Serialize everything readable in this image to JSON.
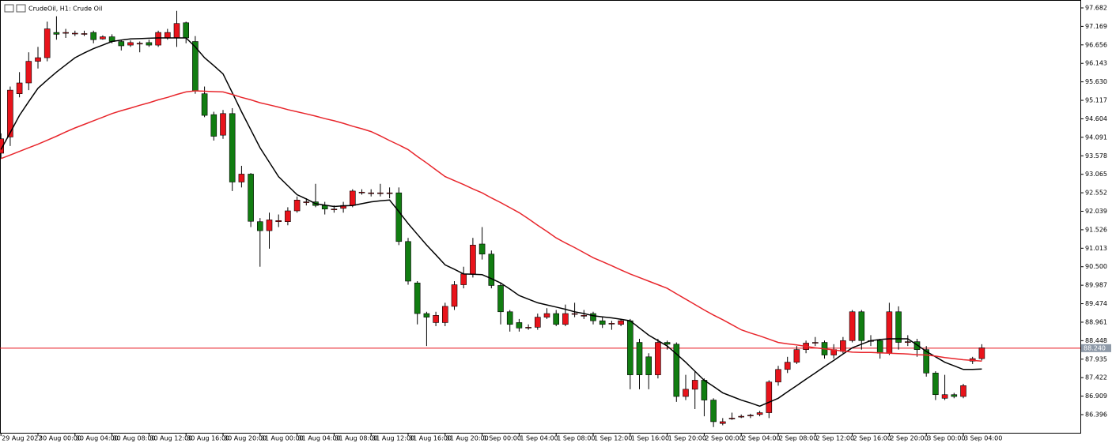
{
  "chart_data": {
    "type": "candlestick",
    "title": "CrudeOil, H1:  Crude Oil",
    "up_color": "#e8131b",
    "down_color": "#117d11",
    "categories": [
      "29 Aug 2022",
      null,
      null,
      null,
      "30 Aug 00:00",
      null,
      null,
      null,
      "30 Aug 04:00",
      null,
      null,
      null,
      "30 Aug 08:00",
      null,
      null,
      null,
      "30 Aug 12:00",
      null,
      null,
      null,
      "30 Aug 16:00",
      null,
      null,
      null,
      "30 Aug 20:00",
      null,
      null,
      null,
      "31 Aug 00:00",
      null,
      null,
      null,
      "31 Aug 04:00",
      null,
      null,
      null,
      "31 Aug 08:00",
      null,
      null,
      null,
      "31 Aug 12:00",
      null,
      null,
      null,
      "31 Aug 16:00",
      null,
      null,
      null,
      "31 Aug 20:00",
      null,
      null,
      null,
      "1 Sep 00:00",
      null,
      null,
      null,
      "1 Sep 04:00",
      null,
      null,
      null,
      "1 Sep 08:00",
      null,
      null,
      null,
      "1 Sep 12:00",
      null,
      null,
      null,
      "1 Sep 16:00",
      null,
      null,
      null,
      "1 Sep 20:00",
      null,
      null,
      null,
      "2 Sep 00:00",
      null,
      null,
      null,
      "2 Sep 04:00",
      null,
      null,
      null,
      "2 Sep 08:00",
      null,
      null,
      null,
      "2 Sep 12:00",
      null,
      null,
      null,
      "2 Sep 16:00",
      null,
      null,
      null,
      "2 Sep 20:00",
      null,
      null,
      null,
      "3 Sep 00:00",
      null,
      null,
      null,
      "3 Sep 04:00",
      null,
      null
    ],
    "open": [
      93.65,
      94.1,
      95.3,
      95.6,
      96.2,
      96.3,
      97.0,
      96.98,
      96.98,
      96.97,
      97.0,
      96.82,
      96.88,
      96.75,
      96.65,
      96.7,
      96.72,
      96.65,
      96.85,
      96.85,
      97.27,
      96.75,
      95.3,
      94.72,
      94.15,
      94.75,
      92.85,
      93.07,
      91.75,
      91.5,
      91.75,
      91.75,
      92.05,
      92.3,
      92.3,
      92.2,
      92.1,
      92.12,
      92.2,
      92.57,
      92.55,
      92.55,
      92.55,
      92.55,
      91.2,
      90.05,
      89.2,
      88.95,
      88.95,
      89.4,
      90.0,
      90.3,
      91.13,
      90.85,
      89.98,
      89.25,
      88.95,
      88.82,
      88.82,
      89.1,
      89.2,
      88.9,
      89.2,
      89.15,
      89.2,
      89.0,
      88.93,
      88.9,
      89.0,
      88.4,
      88.0,
      87.5,
      88.4,
      88.35,
      86.9,
      87.1,
      87.35,
      86.8,
      86.15,
      86.3,
      86.35,
      86.38,
      86.4,
      86.45,
      87.3,
      87.65,
      87.85,
      88.2,
      88.4,
      88.4,
      88.05,
      88.15,
      88.45,
      89.25,
      88.45,
      88.45,
      88.1,
      89.25,
      88.42,
      88.42,
      88.2,
      87.55,
      86.85,
      86.95,
      86.9,
      87.88,
      87.95
    ],
    "close": [
      94.05,
      95.4,
      95.6,
      96.2,
      96.3,
      97.1,
      96.95,
      97.0,
      96.98,
      96.97,
      96.8,
      96.88,
      96.75,
      96.63,
      96.72,
      96.7,
      96.65,
      97.0,
      97.0,
      97.25,
      96.85,
      95.38,
      94.7,
      94.12,
      94.75,
      92.85,
      93.07,
      91.76,
      91.5,
      91.8,
      91.78,
      92.05,
      92.35,
      92.3,
      92.2,
      92.1,
      92.1,
      92.2,
      92.6,
      92.57,
      92.55,
      92.55,
      92.55,
      91.2,
      90.1,
      89.2,
      89.1,
      89.15,
      89.4,
      90.0,
      90.3,
      91.1,
      90.85,
      89.98,
      89.25,
      88.9,
      88.8,
      88.82,
      89.1,
      89.2,
      88.9,
      89.2,
      89.2,
      89.15,
      89.0,
      88.9,
      88.93,
      89.0,
      87.5,
      87.5,
      87.5,
      88.4,
      88.35,
      86.9,
      87.1,
      87.35,
      86.8,
      86.2,
      86.2,
      86.3,
      86.35,
      86.38,
      86.45,
      87.3,
      87.65,
      87.85,
      88.2,
      88.38,
      88.4,
      88.05,
      88.2,
      88.45,
      89.25,
      88.45,
      88.45,
      88.1,
      89.25,
      88.4,
      88.42,
      88.2,
      87.55,
      86.95,
      86.95,
      86.9,
      87.2,
      87.95,
      88.25
    ],
    "high": [
      94.2,
      95.5,
      95.9,
      96.45,
      96.6,
      97.3,
      97.45,
      97.1,
      97.05,
      97.05,
      97.05,
      96.92,
      96.95,
      96.8,
      96.78,
      96.75,
      96.8,
      97.05,
      97.1,
      97.6,
      97.3,
      96.9,
      95.5,
      94.8,
      94.85,
      94.9,
      93.3,
      93.1,
      91.85,
      92.0,
      91.95,
      92.15,
      92.45,
      92.4,
      92.8,
      92.3,
      92.2,
      92.3,
      92.65,
      92.65,
      92.65,
      92.8,
      92.7,
      92.7,
      91.3,
      90.1,
      89.25,
      89.25,
      89.5,
      90.1,
      90.5,
      91.3,
      91.6,
      90.95,
      90.05,
      89.3,
      89.05,
      88.9,
      89.2,
      89.35,
      89.3,
      89.45,
      89.5,
      89.3,
      89.25,
      89.1,
      89.0,
      89.05,
      89.05,
      88.5,
      88.1,
      88.5,
      88.45,
      88.4,
      87.5,
      87.6,
      87.4,
      86.85,
      86.3,
      86.45,
      86.4,
      86.42,
      86.5,
      87.35,
      87.75,
      88.0,
      88.3,
      88.45,
      88.55,
      88.45,
      88.35,
      88.55,
      89.3,
      89.3,
      88.6,
      88.5,
      89.5,
      89.4,
      88.6,
      88.5,
      88.3,
      87.6,
      87.5,
      87.0,
      87.25,
      88.0,
      88.35
    ],
    "low": [
      93.5,
      93.85,
      95.2,
      95.4,
      96.0,
      96.2,
      96.8,
      96.85,
      96.9,
      96.9,
      96.7,
      96.8,
      96.7,
      96.5,
      96.6,
      96.45,
      96.6,
      96.6,
      96.8,
      96.6,
      96.7,
      95.3,
      94.65,
      94.0,
      94.05,
      92.6,
      92.7,
      91.6,
      90.5,
      91.0,
      91.6,
      91.65,
      92.0,
      92.2,
      92.15,
      91.95,
      92.0,
      92.0,
      92.15,
      92.5,
      92.45,
      92.45,
      92.4,
      91.1,
      90.0,
      88.9,
      88.3,
      88.85,
      88.85,
      89.3,
      89.9,
      90.2,
      90.7,
      89.9,
      88.9,
      88.7,
      88.7,
      88.75,
      88.75,
      89.05,
      88.85,
      88.85,
      89.1,
      89.05,
      88.9,
      88.8,
      88.75,
      88.85,
      87.1,
      87.1,
      87.1,
      87.4,
      88.2,
      86.75,
      86.8,
      86.55,
      86.35,
      86.05,
      86.1,
      86.25,
      86.3,
      86.3,
      86.35,
      86.3,
      87.2,
      87.55,
      87.8,
      88.1,
      88.3,
      87.95,
      87.95,
      88.1,
      88.4,
      88.2,
      88.3,
      87.95,
      88.05,
      88.2,
      88.3,
      88.0,
      87.45,
      86.8,
      86.8,
      86.85,
      86.85,
      87.8,
      87.9
    ],
    "series": [
      {
        "color": "#000000",
        "values": [
          93.75,
          94.22,
          94.7,
          95.08,
          95.45,
          95.68,
          95.9,
          96.1,
          96.3,
          96.43,
          96.55,
          96.65,
          96.75,
          96.79,
          96.82,
          96.83,
          96.84,
          96.85,
          96.85,
          96.85,
          96.85,
          96.6,
          96.3,
          96.08,
          95.85,
          95.33,
          94.8,
          94.3,
          93.8,
          93.4,
          93.0,
          92.75,
          92.5,
          92.38,
          92.25,
          92.21,
          92.17,
          92.19,
          92.2,
          92.25,
          92.3,
          92.33,
          92.35,
          92.03,
          91.7,
          91.4,
          91.1,
          90.83,
          90.55,
          90.43,
          90.3,
          90.29,
          90.28,
          90.17,
          90.05,
          89.88,
          89.7,
          89.6,
          89.5,
          89.44,
          89.38,
          89.32,
          89.25,
          89.2,
          89.14,
          89.11,
          89.08,
          89.04,
          89.0,
          88.8,
          88.6,
          88.45,
          88.3,
          88.08,
          87.85,
          87.6,
          87.35,
          87.18,
          87.0,
          86.9,
          86.8,
          86.72,
          86.63,
          86.74,
          86.85,
          87.03,
          87.2,
          87.38,
          87.55,
          87.73,
          87.9,
          88.08,
          88.25,
          88.35,
          88.45,
          88.48,
          88.5,
          88.5,
          88.5,
          88.33,
          88.15,
          88.0,
          87.85,
          87.75,
          87.65,
          87.65,
          87.66
        ]
      },
      {
        "color": "#e8262c",
        "values": [
          93.5,
          93.6,
          93.7,
          93.8,
          93.9,
          94.01,
          94.12,
          94.24,
          94.35,
          94.45,
          94.55,
          94.65,
          94.75,
          94.83,
          94.9,
          94.98,
          95.05,
          95.13,
          95.2,
          95.28,
          95.35,
          95.38,
          95.37,
          95.36,
          95.35,
          95.28,
          95.2,
          95.13,
          95.05,
          94.99,
          94.93,
          94.86,
          94.8,
          94.74,
          94.68,
          94.61,
          94.55,
          94.48,
          94.4,
          94.33,
          94.25,
          94.13,
          94.0,
          93.88,
          93.75,
          93.56,
          93.38,
          93.19,
          93.0,
          92.89,
          92.78,
          92.66,
          92.55,
          92.41,
          92.28,
          92.14,
          92.0,
          91.83,
          91.65,
          91.48,
          91.3,
          91.16,
          91.03,
          90.89,
          90.75,
          90.64,
          90.53,
          90.41,
          90.3,
          90.2,
          90.1,
          90.0,
          89.9,
          89.75,
          89.6,
          89.45,
          89.3,
          89.16,
          89.03,
          88.89,
          88.75,
          88.66,
          88.58,
          88.49,
          88.4,
          88.36,
          88.33,
          88.29,
          88.25,
          88.22,
          88.19,
          88.16,
          88.13,
          88.12,
          88.12,
          88.11,
          88.1,
          88.09,
          88.08,
          88.06,
          88.05,
          88.02,
          87.98,
          87.95,
          87.92,
          87.9,
          87.88
        ]
      }
    ],
    "last_price": {
      "value": 88.24,
      "label": "88.240"
    },
    "last_price_color": "#e8131b",
    "ylim": [
      85.892,
      97.901
    ],
    "yticks": [
      97.682,
      97.169,
      96.656,
      96.143,
      {
        "value": 95.63,
        "label": "95.630"
      },
      95.117,
      94.604,
      94.091,
      93.578,
      93.065,
      92.552,
      92.039,
      91.526,
      91.013,
      {
        "value": 90.5,
        "label": "90.500"
      },
      89.987,
      89.474,
      88.961,
      88.448,
      87.935,
      87.422,
      86.909,
      86.396
    ]
  }
}
